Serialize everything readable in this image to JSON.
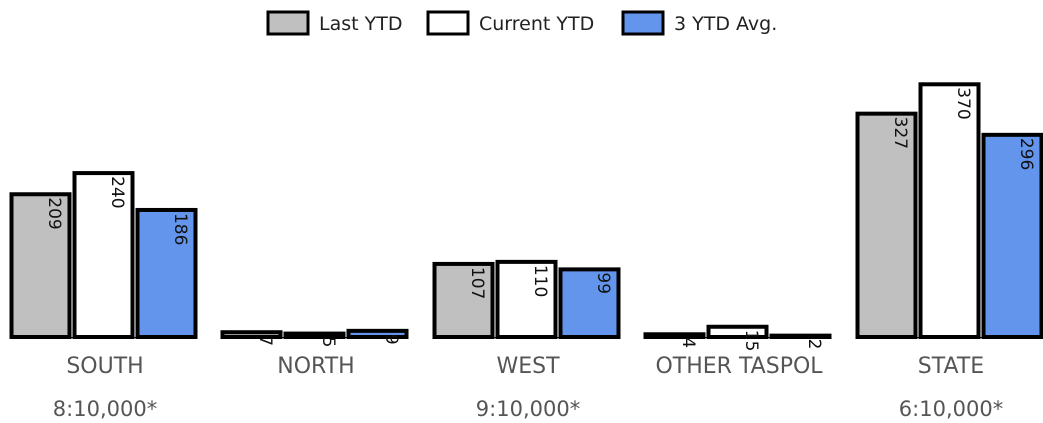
{
  "chart_data": {
    "type": "bar",
    "categories": [
      "SOUTH",
      "NORTH",
      "WEST",
      "OTHER TASPOL",
      "STATE"
    ],
    "rates": [
      "8:10,000*",
      "",
      "9:10,000*",
      "",
      "6:10,000*"
    ],
    "series": [
      {
        "name": "Last YTD",
        "color": "#c0c0c0",
        "values": [
          209,
          7,
          107,
          4,
          327
        ]
      },
      {
        "name": "Current YTD",
        "color": "#ffffff",
        "values": [
          240,
          5,
          110,
          15,
          370
        ]
      },
      {
        "name": "3 YTD Avg.",
        "color": "#6495ed",
        "values": [
          186,
          9,
          99,
          2,
          296
        ]
      }
    ],
    "legend_position": "top",
    "grid": false,
    "border_color": "#000000"
  }
}
